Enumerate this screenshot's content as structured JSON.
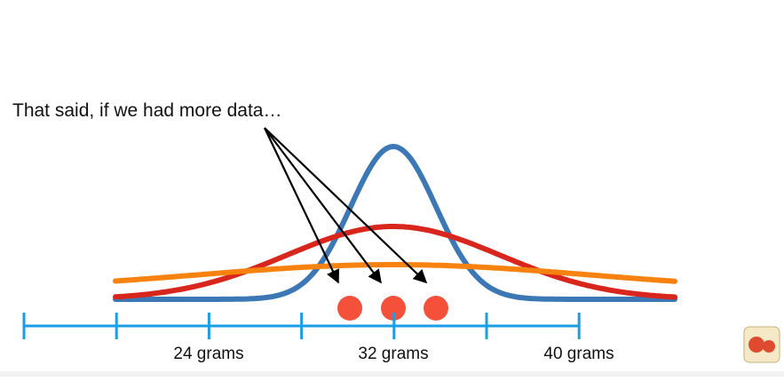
{
  "annotation": "That said, if we had more data…",
  "axis": {
    "labels": [
      "24 grams",
      "32 grams",
      "40 grams"
    ]
  }
}
